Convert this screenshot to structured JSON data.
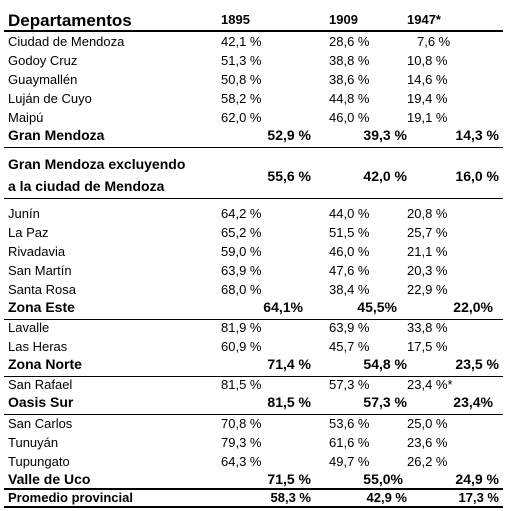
{
  "table": {
    "headers": [
      "Departamentos",
      "1895",
      "1909",
      "1947*"
    ],
    "rows": [
      {
        "name": "Ciudad de Mendoza",
        "v1895": "42,1 %",
        "v1909": "28,6 %",
        "v1947": "7,6 %"
      },
      {
        "name": "Godoy Cruz",
        "v1895": "51,3 %",
        "v1909": "38,8 %",
        "v1947": "10,8 %"
      },
      {
        "name": "Guaymallén",
        "v1895": "50,8 %",
        "v1909": "38,6 %",
        "v1947": "14,6 %"
      },
      {
        "name": "Luján de Cuyo",
        "v1895": "58,2 %",
        "v1909": "44,8 %",
        "v1947": "19,4 %"
      },
      {
        "name": "Maipú",
        "v1895": "62,0 %",
        "v1909": "46,0 %",
        "v1947": "19,1 %"
      },
      {
        "name": "Gran Mendoza",
        "v1895": "52,9 %",
        "v1909": "39,3 %",
        "v1947": "14,3 %"
      },
      {
        "name_line1": "Gran Mendoza excluyendo",
        "name_line2": "a la ciudad de Mendoza",
        "v1895": "55,6 %",
        "v1909": "42,0 %",
        "v1947": "16,0 %"
      },
      {
        "name": "Junín",
        "v1895": "64,2 %",
        "v1909": "44,0 %",
        "v1947": "20,8 %"
      },
      {
        "name": "La Paz",
        "v1895": "65,2 %",
        "v1909": "51,5 %",
        "v1947": "25,7 %"
      },
      {
        "name": "Rivadavia",
        "v1895": "59,0 %",
        "v1909": "46,0 %",
        "v1947": "21,1 %"
      },
      {
        "name": "San Martín",
        "v1895": "63,9 %",
        "v1909": "47,6 %",
        "v1947": "20,3 %"
      },
      {
        "name": "Santa Rosa",
        "v1895": "68,0 %",
        "v1909": "38,4 %",
        "v1947": "22,9 %"
      },
      {
        "name": "Zona Este",
        "v1895": "64,1%",
        "v1909": "45,5%",
        "v1947": "22,0%"
      },
      {
        "name": "Lavalle",
        "v1895": "81,9 %",
        "v1909": "63,9 %",
        "v1947": "33,8 %"
      },
      {
        "name": "Las Heras",
        "v1895": "60,9 %",
        "v1909": "45,7 %",
        "v1947": "17,5 %"
      },
      {
        "name": "Zona Norte",
        "v1895": "71,4 %",
        "v1909": "54,8 %",
        "v1947": "23,5 %"
      },
      {
        "name": "San Rafael",
        "v1895": "81,5 %",
        "v1909": "57,3 %",
        "v1947": "23,4 %*"
      },
      {
        "name": "Oasis Sur",
        "v1895": "81,5 %",
        "v1909": "57,3 %",
        "v1947": "23,4%"
      },
      {
        "name": "San Carlos",
        "v1895": "70,8 %",
        "v1909": "53,6 %",
        "v1947": "25,0 %"
      },
      {
        "name": "Tunuyán",
        "v1895": "79,3 %",
        "v1909": "61,6 %",
        "v1947": "23,6 %"
      },
      {
        "name": "Tupungato",
        "v1895": "64,3 %",
        "v1909": "49,7 %",
        "v1947": "26,2 %"
      },
      {
        "name": "Valle de Uco",
        "v1895": "71,5 %",
        "v1909": "55,0%",
        "v1947": "24,9 %"
      },
      {
        "name": "Promedio provincial",
        "v1895": "58,3 %",
        "v1909": "42,9 %",
        "v1947": "17,3 %"
      }
    ]
  }
}
